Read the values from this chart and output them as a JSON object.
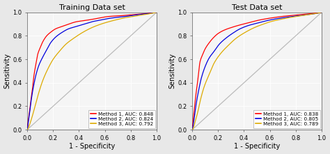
{
  "left_title": "Training Data set",
  "right_title": "Test Data set",
  "xlabel": "1 - Specificity",
  "ylabel": "Sensitivity",
  "colors": [
    "#FF0000",
    "#0000DD",
    "#DDAA00"
  ],
  "left_legend": [
    "Method 1, AUC: 0.848",
    "Method 2, AUC: 0.824",
    "Method 3, AUC: 0.792"
  ],
  "right_legend": [
    "Method 1, AUC: 0.838",
    "Method 2, AUC: 0.805",
    "Method 3, AUC: 0.789"
  ],
  "axis_ticks": [
    0.0,
    0.2,
    0.4,
    0.6,
    0.8,
    1.0
  ],
  "background_color": "#EBEBEB",
  "plot_bg_color": "#F5F5F5",
  "outer_bg": "#E8E8E8",
  "title_fontsize": 8.0,
  "label_fontsize": 7.0,
  "tick_fontsize": 6.0,
  "legend_fontsize": 5.2,
  "line_width": 0.9,
  "left_curves": {
    "m1_fpr": [
      0.0,
      0.01,
      0.02,
      0.03,
      0.04,
      0.05,
      0.06,
      0.07,
      0.08,
      0.1,
      0.12,
      0.15,
      0.18,
      0.22,
      0.27,
      0.32,
      0.38,
      0.44,
      0.5,
      0.57,
      0.63,
      0.7,
      0.76,
      0.82,
      0.87,
      0.92,
      0.96,
      1.0
    ],
    "m1_tpr": [
      0.0,
      0.1,
      0.18,
      0.27,
      0.35,
      0.45,
      0.52,
      0.58,
      0.64,
      0.7,
      0.75,
      0.8,
      0.83,
      0.86,
      0.88,
      0.9,
      0.92,
      0.93,
      0.94,
      0.955,
      0.965,
      0.97,
      0.975,
      0.98,
      0.985,
      0.99,
      0.995,
      1.0
    ],
    "m2_fpr": [
      0.0,
      0.01,
      0.02,
      0.03,
      0.05,
      0.07,
      0.09,
      0.12,
      0.15,
      0.18,
      0.22,
      0.27,
      0.32,
      0.38,
      0.44,
      0.5,
      0.57,
      0.63,
      0.7,
      0.76,
      0.82,
      0.87,
      0.92,
      0.96,
      1.0
    ],
    "m2_tpr": [
      0.0,
      0.08,
      0.16,
      0.25,
      0.38,
      0.48,
      0.55,
      0.62,
      0.68,
      0.74,
      0.79,
      0.83,
      0.86,
      0.88,
      0.9,
      0.92,
      0.935,
      0.948,
      0.958,
      0.965,
      0.975,
      0.982,
      0.988,
      0.993,
      1.0
    ],
    "m3_fpr": [
      0.0,
      0.01,
      0.02,
      0.04,
      0.06,
      0.09,
      0.12,
      0.16,
      0.2,
      0.25,
      0.3,
      0.36,
      0.43,
      0.5,
      0.57,
      0.63,
      0.7,
      0.76,
      0.82,
      0.87,
      0.92,
      0.96,
      1.0
    ],
    "m3_tpr": [
      0.0,
      0.02,
      0.05,
      0.12,
      0.2,
      0.32,
      0.42,
      0.52,
      0.6,
      0.67,
      0.73,
      0.78,
      0.83,
      0.87,
      0.9,
      0.92,
      0.94,
      0.955,
      0.965,
      0.975,
      0.983,
      0.991,
      1.0
    ]
  },
  "right_curves": {
    "m1_fpr": [
      0.0,
      0.01,
      0.02,
      0.03,
      0.04,
      0.05,
      0.06,
      0.08,
      0.1,
      0.13,
      0.16,
      0.2,
      0.25,
      0.3,
      0.36,
      0.43,
      0.5,
      0.57,
      0.64,
      0.71,
      0.78,
      0.84,
      0.9,
      0.95,
      1.0
    ],
    "m1_tpr": [
      0.0,
      0.12,
      0.22,
      0.32,
      0.4,
      0.5,
      0.58,
      0.64,
      0.69,
      0.74,
      0.78,
      0.82,
      0.85,
      0.87,
      0.89,
      0.91,
      0.93,
      0.945,
      0.957,
      0.967,
      0.975,
      0.982,
      0.988,
      0.993,
      1.0
    ],
    "m2_fpr": [
      0.0,
      0.01,
      0.02,
      0.03,
      0.05,
      0.07,
      0.1,
      0.13,
      0.17,
      0.21,
      0.26,
      0.31,
      0.37,
      0.44,
      0.51,
      0.58,
      0.65,
      0.72,
      0.79,
      0.85,
      0.91,
      0.96,
      1.0
    ],
    "m2_tpr": [
      0.0,
      0.06,
      0.14,
      0.22,
      0.34,
      0.44,
      0.54,
      0.61,
      0.67,
      0.73,
      0.78,
      0.82,
      0.86,
      0.89,
      0.91,
      0.93,
      0.945,
      0.957,
      0.967,
      0.975,
      0.983,
      0.991,
      1.0
    ],
    "m3_fpr": [
      0.0,
      0.01,
      0.02,
      0.04,
      0.06,
      0.09,
      0.13,
      0.17,
      0.22,
      0.28,
      0.34,
      0.41,
      0.48,
      0.55,
      0.62,
      0.69,
      0.76,
      0.83,
      0.89,
      0.94,
      1.0
    ],
    "m3_tpr": [
      0.0,
      0.02,
      0.06,
      0.14,
      0.24,
      0.36,
      0.47,
      0.57,
      0.65,
      0.72,
      0.78,
      0.83,
      0.87,
      0.9,
      0.925,
      0.942,
      0.957,
      0.969,
      0.979,
      0.987,
      1.0
    ]
  }
}
